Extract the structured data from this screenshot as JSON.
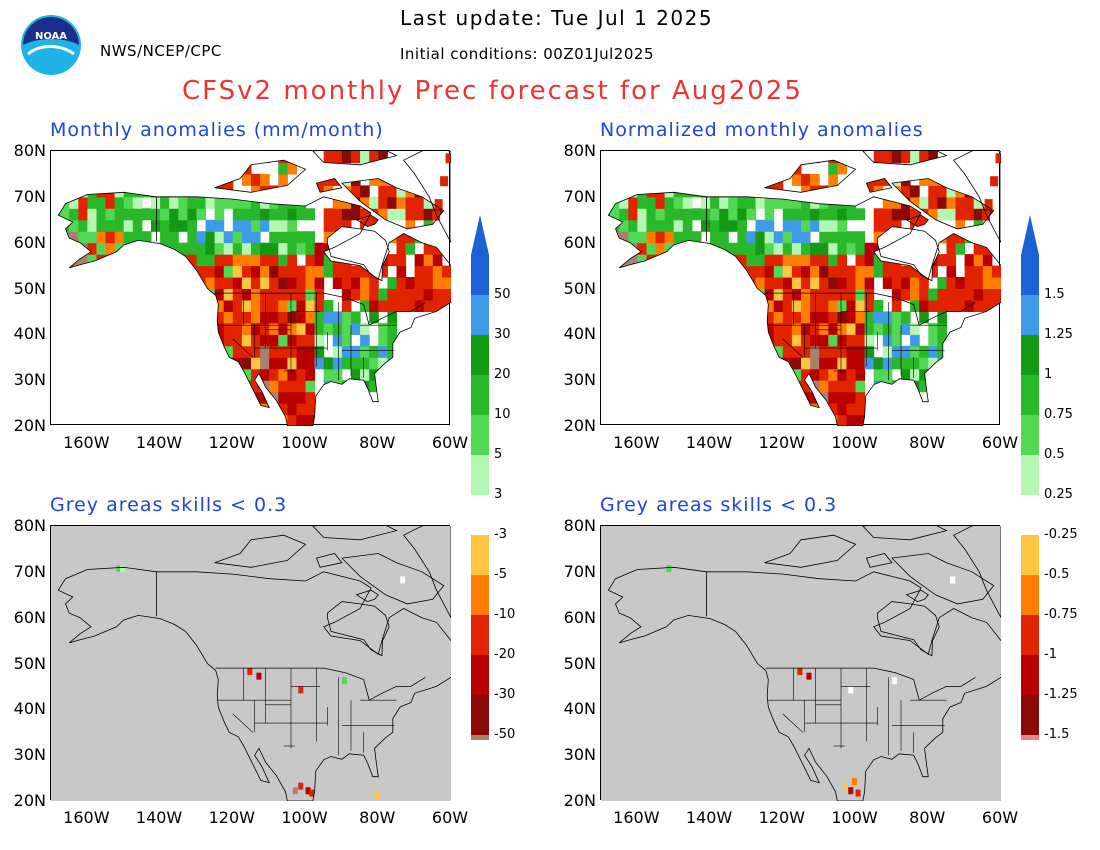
{
  "header": {
    "last_update": "Last update: Tue Jul 1 2025",
    "organization": "NWS/NCEP/CPC",
    "initial_conditions": "Initial conditions: 00Z01Jul2025",
    "title": "CFSv2 monthly Prec forecast for Aug2025",
    "logo_text": "NOAA"
  },
  "panels": [
    {
      "id": "anom",
      "title": "Monthly anomalies (mm/month)",
      "type": "anomaly"
    },
    {
      "id": "norm",
      "title": "Normalized monthly anomalies",
      "type": "normalized"
    },
    {
      "id": "skill_anom",
      "title": "Grey areas skills < 0.3",
      "type": "skill-masked"
    },
    {
      "id": "skill_norm",
      "title": "Grey areas skills < 0.3",
      "type": "skill-masked"
    }
  ],
  "axes": {
    "lat_labels": [
      "80N",
      "70N",
      "60N",
      "50N",
      "40N",
      "30N",
      "20N"
    ],
    "lon_labels": [
      "160W",
      "140W",
      "120W",
      "100W",
      "80W",
      "60W"
    ],
    "lat_range": [
      20,
      80
    ],
    "lon_range": [
      -170,
      -60
    ]
  },
  "colorbar_anom": {
    "labels": [
      "50",
      "30",
      "20",
      "10",
      "5",
      "3",
      "-3",
      "-5",
      "-10",
      "-20",
      "-30",
      "-50"
    ]
  },
  "colorbar_norm": {
    "labels": [
      "1.5",
      "1.25",
      "1",
      "0.75",
      "0.5",
      "0.25",
      "-0.25",
      "-0.5",
      "-0.75",
      "-1",
      "-1.25",
      "-1.5"
    ]
  },
  "colors": {
    "wet": [
      "#1b62d6",
      "#3f9ae8",
      "#149914",
      "#29b829",
      "#53d853",
      "#b3f7b3"
    ],
    "neutral": "#ffffff",
    "dry": [
      "#ffc440",
      "#ff7d00",
      "#e22300",
      "#b80000",
      "#8a0a0a",
      "#a8826e"
    ],
    "cap_top": "#1b62d6",
    "cap_bottom_anom": "#5e3a2a",
    "cap_bottom_norm": "#6a2b2b",
    "norm_bottom_bin": "#e88585",
    "grey": "#c8c8c8",
    "title_red": "#ee3333",
    "panel_title_blue": "#1d46d8"
  }
}
